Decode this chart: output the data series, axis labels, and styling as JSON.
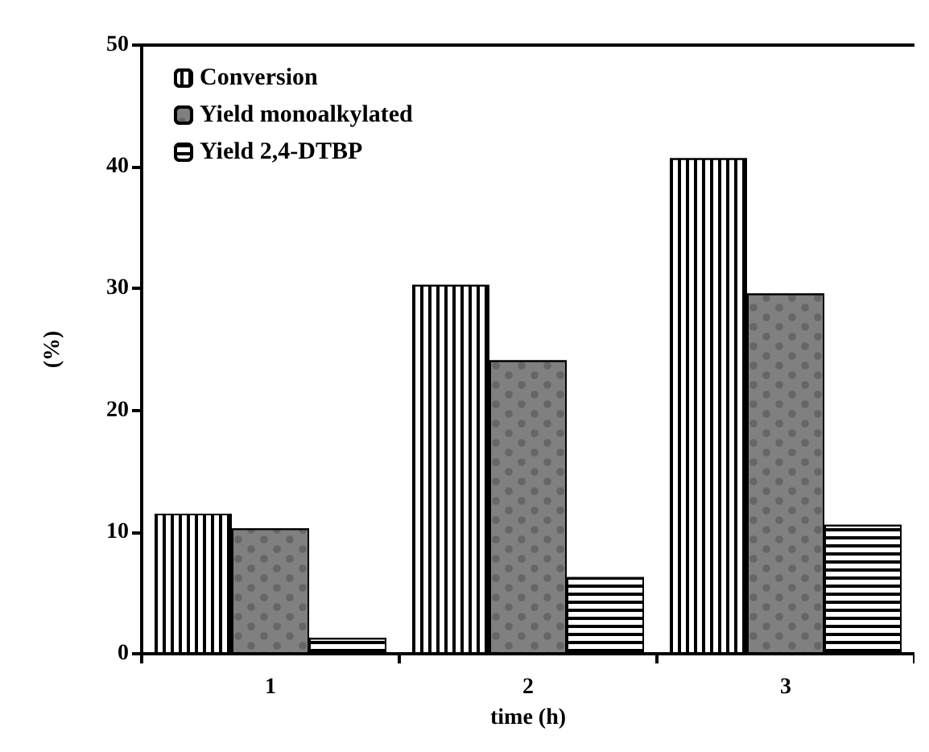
{
  "chart_data": {
    "type": "bar",
    "xlabel": "time (h)",
    "ylabel": "(%)",
    "categories": [
      "1",
      "2",
      "3"
    ],
    "series": [
      {
        "name": "Conversion",
        "color": "#ffffff",
        "values": [
          11.5,
          30.3,
          40.7
        ]
      },
      {
        "name": "Yield monoalkylated",
        "color": "#808080",
        "values": [
          10.3,
          24.1,
          29.6
        ]
      },
      {
        "name": "Yield 2,4-DTBP",
        "color": "#ffffff",
        "values": [
          1.3,
          6.3,
          10.6
        ]
      }
    ],
    "ylim": [
      0,
      50
    ],
    "yticks": [
      0,
      10,
      20,
      30,
      40,
      50
    ],
    "grid": false,
    "legend": "top left"
  }
}
